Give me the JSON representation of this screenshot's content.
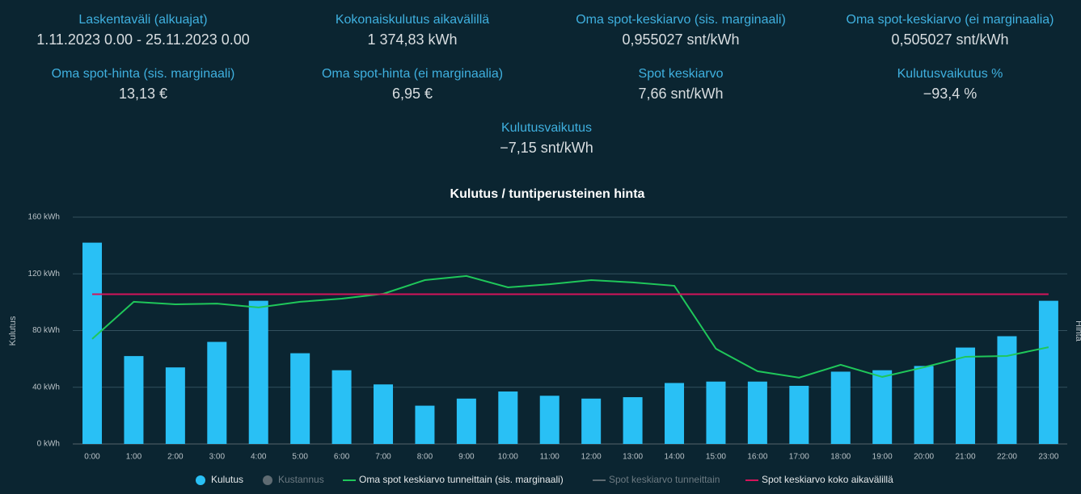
{
  "stats": [
    {
      "label": "Laskentaväli (alkuajat)",
      "value": "1.11.2023 0.00 - 25.11.2023 0.00"
    },
    {
      "label": "Kokonaiskulutus aikavälillä",
      "value": "1 374,83 kWh"
    },
    {
      "label": "Oma spot-keskiarvo (sis. marginaali)",
      "value": "0,955027 snt/kWh"
    },
    {
      "label": "Oma spot-keskiarvo (ei marginaalia)",
      "value": "0,505027 snt/kWh"
    },
    {
      "label": "Oma spot-hinta (sis. marginaali)",
      "value": "13,13 €"
    },
    {
      "label": "Oma spot-hinta (ei marginaalia)",
      "value": "6,95 €"
    },
    {
      "label": "Spot keskiarvo",
      "value": "7,66 snt/kWh"
    },
    {
      "label": "Kulutusvaikutus %",
      "value": "−93,4 %"
    },
    {
      "label": "Kulutusvaikutus",
      "value": "−7,15 snt/kWh"
    }
  ],
  "chart_data": {
    "type": "bar",
    "title": "Kulutus / tuntiperusteinen hinta",
    "ylabel": "Kulutus",
    "y2label": "Hinta",
    "categories": [
      "0:00",
      "1:00",
      "2:00",
      "3:00",
      "4:00",
      "5:00",
      "6:00",
      "7:00",
      "8:00",
      "9:00",
      "10:00",
      "11:00",
      "12:00",
      "13:00",
      "14:00",
      "15:00",
      "16:00",
      "17:00",
      "18:00",
      "19:00",
      "20:00",
      "21:00",
      "22:00",
      "23:00"
    ],
    "ylim": [
      0,
      160
    ],
    "yticks": [
      {
        "value": 0,
        "label": "0 kWh"
      },
      {
        "value": 40,
        "label": "40 kWh"
      },
      {
        "value": 80,
        "label": "80 kWh"
      },
      {
        "value": 120,
        "label": "120 kWh"
      },
      {
        "value": 160,
        "label": "160 kWh"
      }
    ],
    "y2lim": [
      0,
      11.6
    ],
    "grid": true,
    "series": [
      {
        "name": "Kulutus",
        "type": "bar",
        "color": "#29c0f5",
        "values": [
          142,
          62,
          54,
          72,
          101,
          64,
          52,
          42,
          27,
          32,
          37,
          34,
          32,
          33,
          43,
          44,
          44,
          41,
          51,
          52,
          55,
          68,
          76,
          101
        ]
      },
      {
        "name": "Kustannus",
        "type": "bar",
        "color": "#5f6b72",
        "hidden": true
      },
      {
        "name": "Oma spot keskiarvo tunneittain (sis. marginaali)",
        "type": "line",
        "axis": "y2",
        "color": "#1fc75a",
        "values": [
          5.37,
          7.27,
          7.14,
          7.18,
          6.98,
          7.27,
          7.43,
          7.68,
          8.38,
          8.59,
          8.01,
          8.17,
          8.38,
          8.26,
          8.09,
          4.87,
          3.72,
          3.39,
          4.05,
          3.43,
          3.92,
          4.46,
          4.5,
          4.95
        ]
      },
      {
        "name": "Spot keskiarvo tunneittain",
        "type": "line",
        "axis": "y2",
        "color": "#5f6b72",
        "hidden": true
      },
      {
        "name": "Spot keskiarvo koko aikavälillä",
        "type": "hline",
        "axis": "y2",
        "color": "#d3145a",
        "value": 7.66
      }
    ]
  }
}
